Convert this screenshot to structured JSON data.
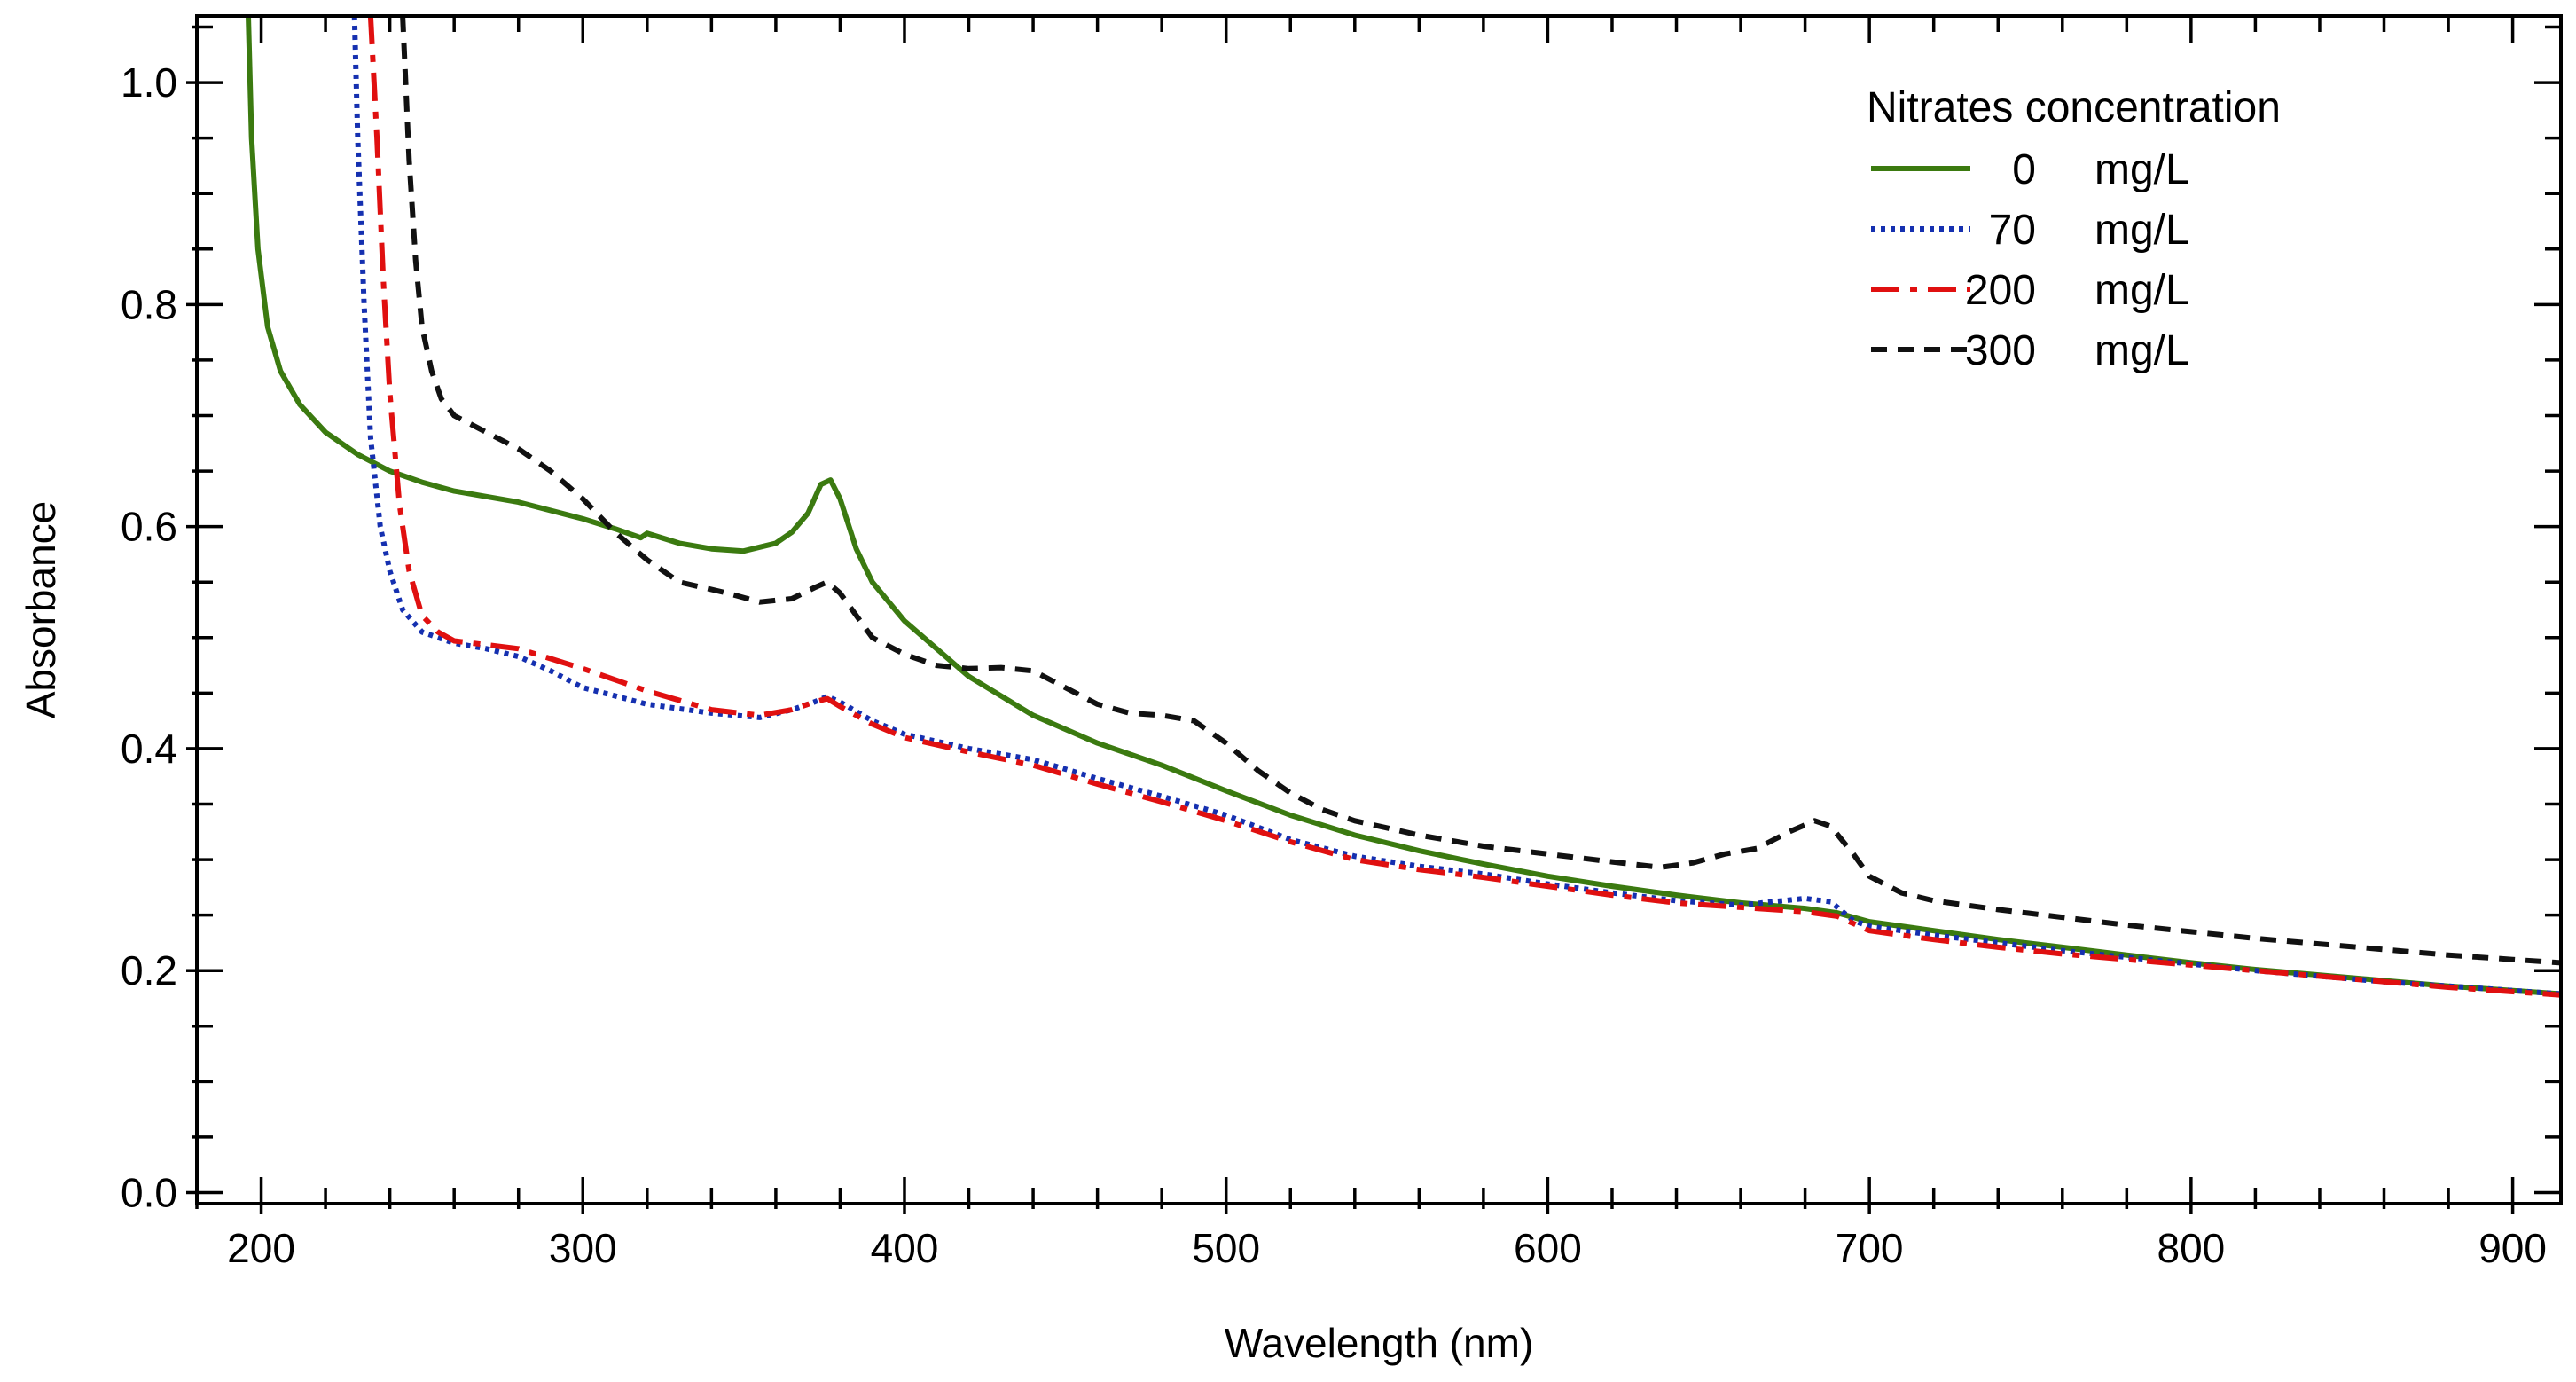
{
  "chart_data": {
    "type": "line",
    "title": "",
    "xlabel": "Wavelength (nm)",
    "ylabel": "Absorbance",
    "xlim": [
      180,
      915
    ],
    "ylim": [
      -0.01,
      1.06
    ],
    "x_ticks": [
      200,
      300,
      400,
      500,
      600,
      700,
      800,
      900
    ],
    "x_tick_labels": [
      "200",
      "300",
      "400",
      "500",
      "600",
      "700",
      "800",
      "900"
    ],
    "y_ticks": [
      0.0,
      0.2,
      0.4,
      0.6,
      0.8,
      1.0
    ],
    "y_tick_labels": [
      "0.0",
      "0.2",
      "0.4",
      "0.6",
      "0.8",
      "1.0"
    ],
    "grid": false,
    "legend": {
      "title": "Nitrates concentration",
      "position": "top-right"
    },
    "series": [
      {
        "name": "0 mg/L",
        "label_value": "0",
        "label_unit": "mg/L",
        "color": "#3b7a10",
        "style": "solid",
        "points": [
          [
            196,
            1.06
          ],
          [
            197,
            0.95
          ],
          [
            199,
            0.85
          ],
          [
            202,
            0.78
          ],
          [
            206,
            0.74
          ],
          [
            212,
            0.71
          ],
          [
            220,
            0.685
          ],
          [
            230,
            0.665
          ],
          [
            240,
            0.65
          ],
          [
            250,
            0.64
          ],
          [
            260,
            0.632
          ],
          [
            280,
            0.622
          ],
          [
            300,
            0.607
          ],
          [
            310,
            0.598
          ],
          [
            318,
            0.59
          ],
          [
            320,
            0.594
          ],
          [
            330,
            0.585
          ],
          [
            340,
            0.58
          ],
          [
            350,
            0.578
          ],
          [
            360,
            0.585
          ],
          [
            365,
            0.595
          ],
          [
            370,
            0.612
          ],
          [
            374,
            0.638
          ],
          [
            377,
            0.642
          ],
          [
            380,
            0.625
          ],
          [
            385,
            0.58
          ],
          [
            390,
            0.55
          ],
          [
            400,
            0.515
          ],
          [
            420,
            0.465
          ],
          [
            440,
            0.43
          ],
          [
            460,
            0.405
          ],
          [
            480,
            0.385
          ],
          [
            500,
            0.362
          ],
          [
            520,
            0.34
          ],
          [
            540,
            0.322
          ],
          [
            560,
            0.308
          ],
          [
            580,
            0.296
          ],
          [
            600,
            0.285
          ],
          [
            620,
            0.276
          ],
          [
            640,
            0.268
          ],
          [
            660,
            0.261
          ],
          [
            680,
            0.256
          ],
          [
            690,
            0.252
          ],
          [
            700,
            0.244
          ],
          [
            720,
            0.236
          ],
          [
            740,
            0.228
          ],
          [
            760,
            0.221
          ],
          [
            780,
            0.214
          ],
          [
            800,
            0.207
          ],
          [
            820,
            0.201
          ],
          [
            840,
            0.196
          ],
          [
            860,
            0.191
          ],
          [
            880,
            0.186
          ],
          [
            900,
            0.182
          ],
          [
            915,
            0.179
          ]
        ]
      },
      {
        "name": "70 mg/L",
        "label_value": "70",
        "label_unit": "mg/L",
        "color": "#1530b0",
        "style": "dotted",
        "points": [
          [
            229,
            1.06
          ],
          [
            230,
            0.95
          ],
          [
            232,
            0.8
          ],
          [
            234,
            0.68
          ],
          [
            237,
            0.6
          ],
          [
            240,
            0.56
          ],
          [
            244,
            0.525
          ],
          [
            250,
            0.505
          ],
          [
            260,
            0.495
          ],
          [
            270,
            0.49
          ],
          [
            280,
            0.483
          ],
          [
            290,
            0.47
          ],
          [
            300,
            0.455
          ],
          [
            320,
            0.44
          ],
          [
            340,
            0.432
          ],
          [
            355,
            0.428
          ],
          [
            365,
            0.435
          ],
          [
            372,
            0.442
          ],
          [
            376,
            0.447
          ],
          [
            380,
            0.442
          ],
          [
            390,
            0.425
          ],
          [
            400,
            0.413
          ],
          [
            420,
            0.4
          ],
          [
            440,
            0.39
          ],
          [
            460,
            0.373
          ],
          [
            480,
            0.357
          ],
          [
            500,
            0.34
          ],
          [
            520,
            0.318
          ],
          [
            540,
            0.303
          ],
          [
            560,
            0.294
          ],
          [
            580,
            0.287
          ],
          [
            600,
            0.278
          ],
          [
            620,
            0.27
          ],
          [
            640,
            0.263
          ],
          [
            660,
            0.259
          ],
          [
            670,
            0.262
          ],
          [
            680,
            0.265
          ],
          [
            688,
            0.262
          ],
          [
            695,
            0.245
          ],
          [
            700,
            0.24
          ],
          [
            720,
            0.232
          ],
          [
            740,
            0.225
          ],
          [
            760,
            0.218
          ],
          [
            780,
            0.212
          ],
          [
            800,
            0.206
          ],
          [
            820,
            0.2
          ],
          [
            840,
            0.195
          ],
          [
            860,
            0.19
          ],
          [
            880,
            0.186
          ],
          [
            900,
            0.182
          ],
          [
            915,
            0.179
          ]
        ]
      },
      {
        "name": "200 mg/L",
        "label_value": "200",
        "label_unit": "mg/L",
        "color": "#e01010",
        "style": "dashdot",
        "points": [
          [
            234,
            1.06
          ],
          [
            236,
            0.95
          ],
          [
            238,
            0.82
          ],
          [
            240,
            0.72
          ],
          [
            243,
            0.62
          ],
          [
            246,
            0.56
          ],
          [
            250,
            0.52
          ],
          [
            255,
            0.505
          ],
          [
            260,
            0.497
          ],
          [
            280,
            0.49
          ],
          [
            300,
            0.472
          ],
          [
            320,
            0.452
          ],
          [
            340,
            0.435
          ],
          [
            355,
            0.43
          ],
          [
            365,
            0.435
          ],
          [
            372,
            0.442
          ],
          [
            376,
            0.445
          ],
          [
            380,
            0.438
          ],
          [
            390,
            0.422
          ],
          [
            400,
            0.41
          ],
          [
            420,
            0.397
          ],
          [
            440,
            0.385
          ],
          [
            460,
            0.368
          ],
          [
            480,
            0.352
          ],
          [
            500,
            0.335
          ],
          [
            520,
            0.316
          ],
          [
            540,
            0.3
          ],
          [
            560,
            0.291
          ],
          [
            580,
            0.284
          ],
          [
            600,
            0.276
          ],
          [
            620,
            0.268
          ],
          [
            640,
            0.261
          ],
          [
            660,
            0.257
          ],
          [
            680,
            0.253
          ],
          [
            690,
            0.249
          ],
          [
            700,
            0.236
          ],
          [
            720,
            0.228
          ],
          [
            740,
            0.221
          ],
          [
            760,
            0.215
          ],
          [
            780,
            0.21
          ],
          [
            800,
            0.205
          ],
          [
            820,
            0.2
          ],
          [
            840,
            0.195
          ],
          [
            860,
            0.19
          ],
          [
            880,
            0.185
          ],
          [
            900,
            0.181
          ],
          [
            915,
            0.178
          ]
        ]
      },
      {
        "name": "300 mg/L",
        "label_value": "300",
        "label_unit": "mg/L",
        "color": "#111111",
        "style": "dashed",
        "points": [
          [
            244,
            1.06
          ],
          [
            246,
            0.93
          ],
          [
            248,
            0.84
          ],
          [
            250,
            0.78
          ],
          [
            253,
            0.74
          ],
          [
            256,
            0.715
          ],
          [
            260,
            0.7
          ],
          [
            270,
            0.685
          ],
          [
            280,
            0.67
          ],
          [
            290,
            0.65
          ],
          [
            300,
            0.625
          ],
          [
            310,
            0.595
          ],
          [
            320,
            0.57
          ],
          [
            330,
            0.55
          ],
          [
            345,
            0.54
          ],
          [
            355,
            0.532
          ],
          [
            365,
            0.535
          ],
          [
            372,
            0.545
          ],
          [
            376,
            0.55
          ],
          [
            380,
            0.54
          ],
          [
            390,
            0.5
          ],
          [
            400,
            0.485
          ],
          [
            410,
            0.475
          ],
          [
            420,
            0.472
          ],
          [
            430,
            0.473
          ],
          [
            440,
            0.47
          ],
          [
            450,
            0.455
          ],
          [
            460,
            0.44
          ],
          [
            470,
            0.432
          ],
          [
            480,
            0.43
          ],
          [
            490,
            0.425
          ],
          [
            500,
            0.405
          ],
          [
            510,
            0.38
          ],
          [
            520,
            0.36
          ],
          [
            530,
            0.345
          ],
          [
            540,
            0.335
          ],
          [
            560,
            0.322
          ],
          [
            580,
            0.312
          ],
          [
            600,
            0.305
          ],
          [
            620,
            0.298
          ],
          [
            635,
            0.293
          ],
          [
            645,
            0.297
          ],
          [
            655,
            0.305
          ],
          [
            665,
            0.31
          ],
          [
            675,
            0.325
          ],
          [
            683,
            0.335
          ],
          [
            688,
            0.33
          ],
          [
            695,
            0.305
          ],
          [
            700,
            0.285
          ],
          [
            710,
            0.27
          ],
          [
            720,
            0.263
          ],
          [
            740,
            0.255
          ],
          [
            760,
            0.248
          ],
          [
            780,
            0.241
          ],
          [
            800,
            0.235
          ],
          [
            820,
            0.229
          ],
          [
            840,
            0.224
          ],
          [
            860,
            0.219
          ],
          [
            880,
            0.214
          ],
          [
            900,
            0.21
          ],
          [
            915,
            0.207
          ]
        ]
      }
    ]
  }
}
